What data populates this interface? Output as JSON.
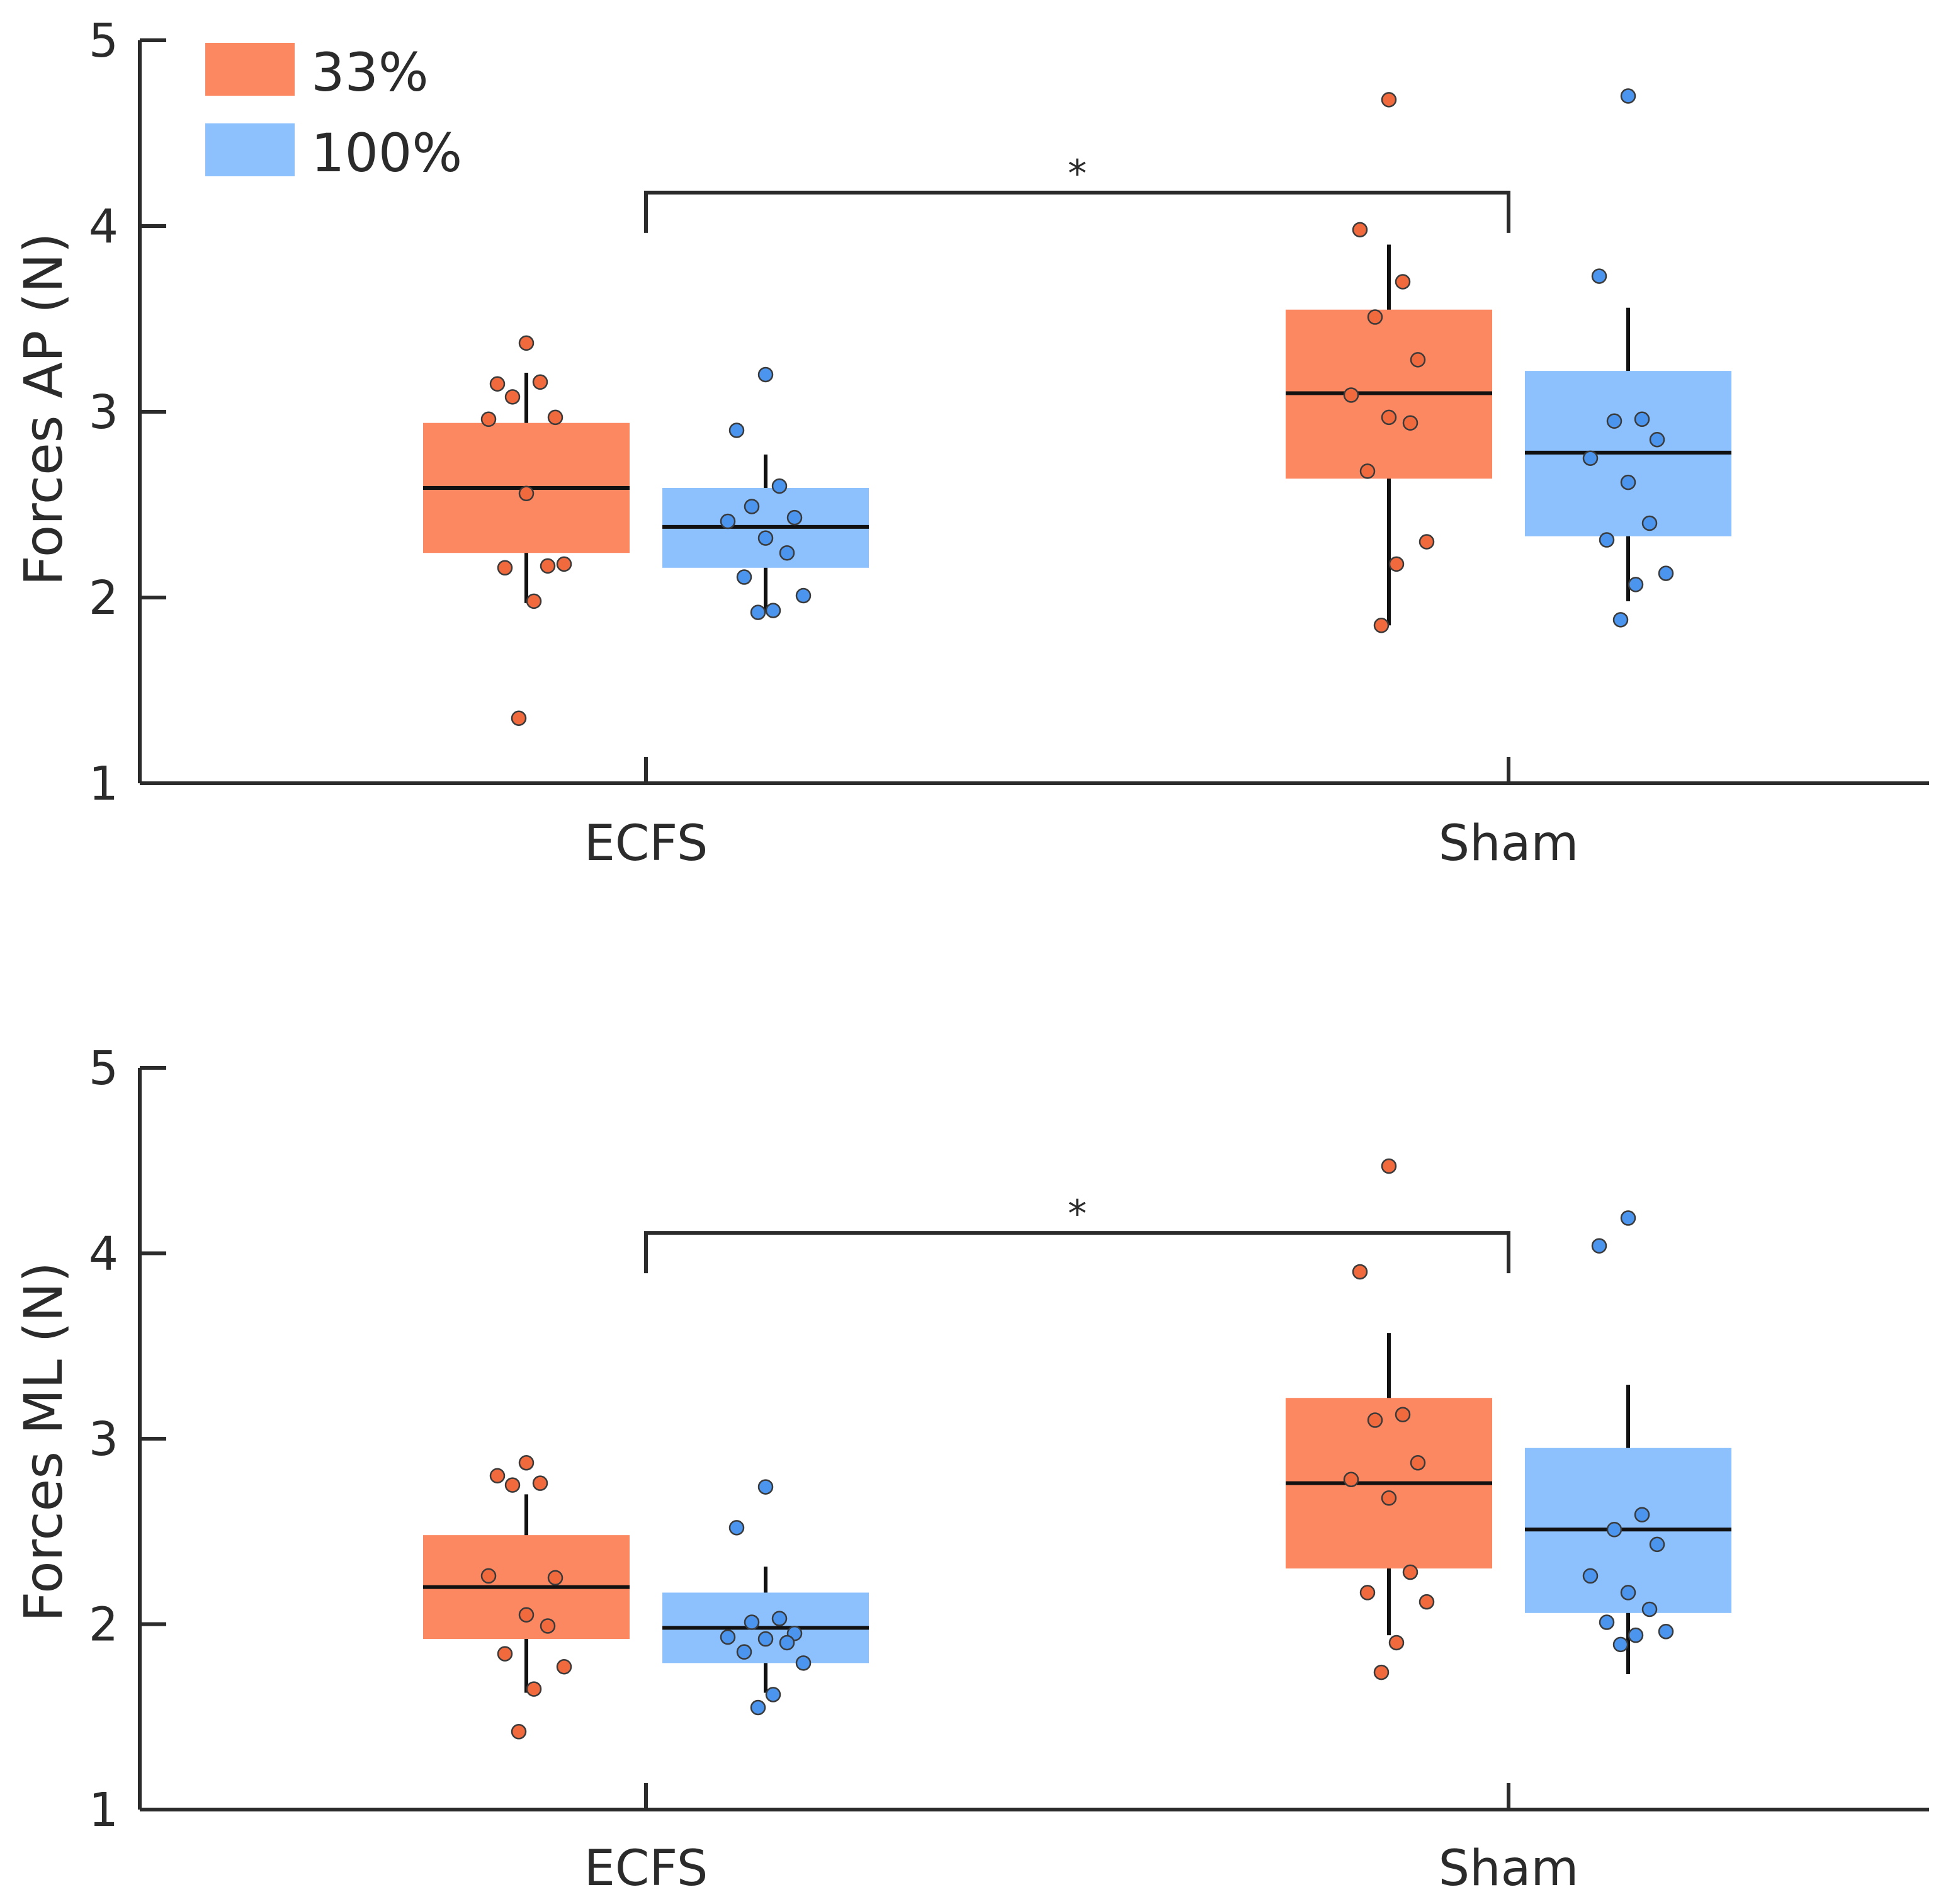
{
  "colors": {
    "s33": "#FC8862",
    "s33_point": "#F06A3E",
    "s100": "#8DC1FD",
    "s100_point": "#4B95EE"
  },
  "legend": [
    {
      "label": "33%",
      "color": "#FC8862"
    },
    {
      "label": "100%",
      "color": "#8DC1FD"
    }
  ],
  "chart_data": [
    {
      "type": "box",
      "title": "",
      "xlabel": "",
      "ylabel": "Forces AP (N)",
      "ylim": [
        1,
        5
      ],
      "yticks": [
        "1",
        "2",
        "3",
        "4",
        "5"
      ],
      "categories": [
        "ECFS",
        "Sham"
      ],
      "significance": "*",
      "series": [
        {
          "name": "33%",
          "boxes": [
            {
              "category": "ECFS",
              "q1": 2.24,
              "median": 2.59,
              "q3": 2.94,
              "whisker_low": 1.97,
              "whisker_high": 3.21,
              "points": [
                3.37,
                3.15,
                3.16,
                3.08,
                2.97,
                2.96,
                2.56,
                2.17,
                2.16,
                2.18,
                1.98,
                1.35
              ]
            },
            {
              "category": "Sham",
              "q1": 2.64,
              "median": 3.1,
              "q3": 3.55,
              "whisker_low": 1.85,
              "whisker_high": 3.9,
              "points": [
                4.68,
                3.98,
                3.7,
                3.51,
                3.28,
                3.09,
                2.97,
                2.94,
                2.68,
                2.3,
                2.18,
                1.85
              ]
            }
          ]
        },
        {
          "name": "100%",
          "boxes": [
            {
              "category": "ECFS",
              "q1": 2.16,
              "median": 2.38,
              "q3": 2.59,
              "whisker_low": 1.93,
              "whisker_high": 2.77,
              "points": [
                3.2,
                2.9,
                2.6,
                2.49,
                2.43,
                2.41,
                2.32,
                2.24,
                2.11,
                2.01,
                1.93,
                1.92
              ]
            },
            {
              "category": "Sham",
              "q1": 2.33,
              "median": 2.78,
              "q3": 3.22,
              "whisker_low": 1.98,
              "whisker_high": 3.56,
              "points": [
                4.7,
                3.73,
                2.96,
                2.95,
                2.85,
                2.75,
                2.62,
                2.4,
                2.31,
                2.13,
                2.07,
                1.88
              ]
            }
          ]
        }
      ]
    },
    {
      "type": "box",
      "title": "",
      "xlabel": "",
      "ylabel": "Forces ML (N)",
      "ylim": [
        1,
        5
      ],
      "yticks": [
        "1",
        "2",
        "3",
        "4",
        "5"
      ],
      "categories": [
        "ECFS",
        "Sham"
      ],
      "significance": "*",
      "series": [
        {
          "name": "33%",
          "boxes": [
            {
              "category": "ECFS",
              "q1": 1.92,
              "median": 2.2,
              "q3": 2.48,
              "whisker_low": 1.63,
              "whisker_high": 2.7,
              "points": [
                2.87,
                2.8,
                2.76,
                2.75,
                2.25,
                2.26,
                2.05,
                1.99,
                1.84,
                1.77,
                1.65,
                1.42
              ]
            },
            {
              "category": "Sham",
              "q1": 2.3,
              "median": 2.76,
              "q3": 3.22,
              "whisker_low": 1.94,
              "whisker_high": 3.57,
              "points": [
                4.47,
                3.9,
                3.13,
                3.1,
                2.87,
                2.78,
                2.68,
                2.28,
                2.17,
                2.12,
                1.9,
                1.74
              ]
            }
          ]
        },
        {
          "name": "100%",
          "boxes": [
            {
              "category": "ECFS",
              "q1": 1.79,
              "median": 1.98,
              "q3": 2.17,
              "whisker_low": 1.63,
              "whisker_high": 2.31,
              "points": [
                2.74,
                2.52,
                2.03,
                2.01,
                1.95,
                1.93,
                1.92,
                1.9,
                1.85,
                1.79,
                1.62,
                1.55
              ]
            },
            {
              "category": "Sham",
              "q1": 2.06,
              "median": 2.51,
              "q3": 2.95,
              "whisker_low": 1.73,
              "whisker_high": 3.29,
              "points": [
                4.19,
                4.04,
                2.59,
                2.51,
                2.43,
                2.26,
                2.17,
                2.08,
                2.01,
                1.96,
                1.94,
                1.89
              ]
            }
          ]
        }
      ]
    }
  ]
}
